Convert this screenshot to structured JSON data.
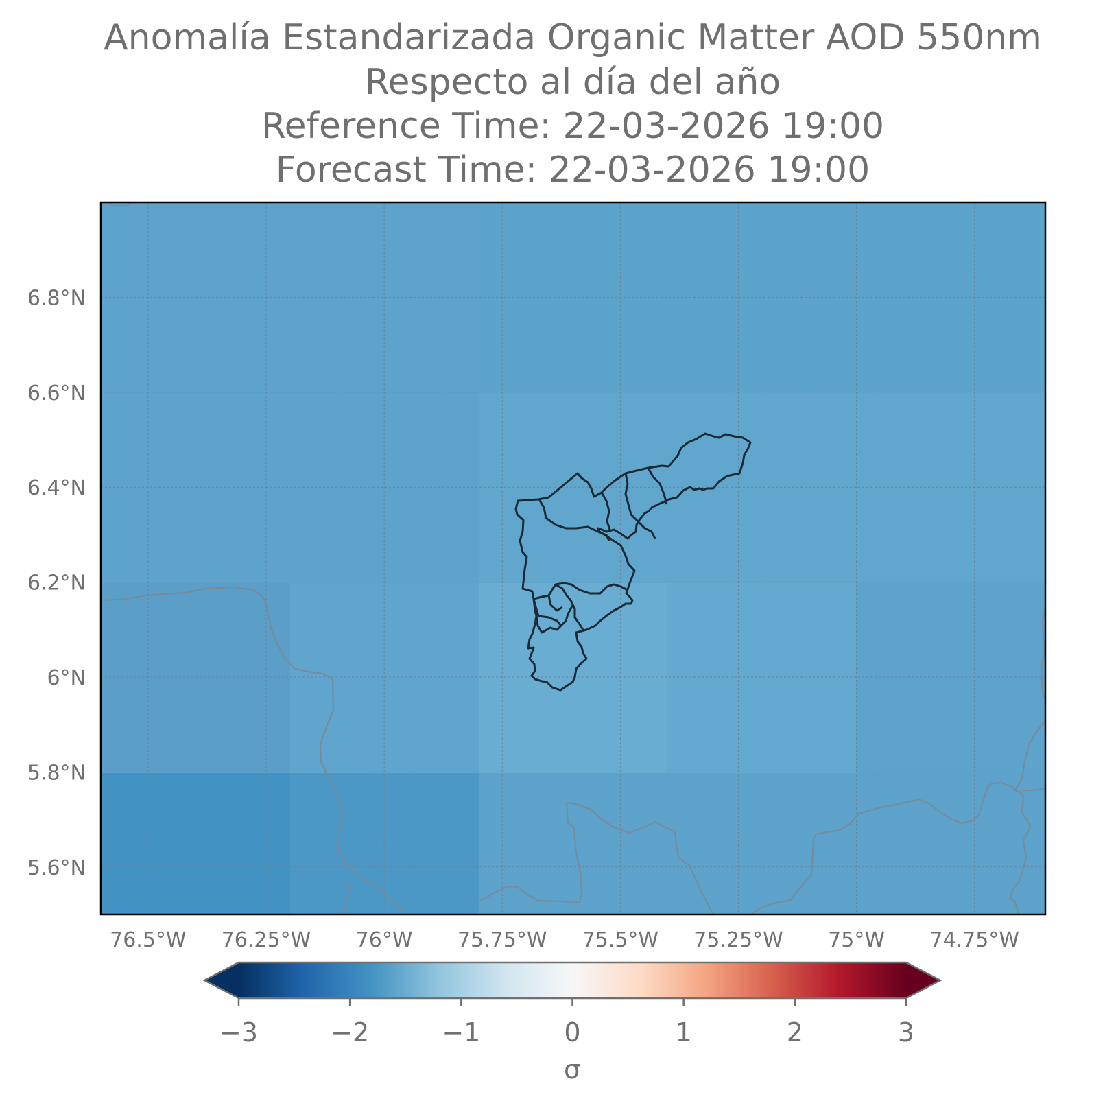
{
  "title": {
    "line1": "Anomalía Estandarizada Organic Matter AOD 550nm",
    "line2": "Respecto al día del año",
    "line3": "Reference Time: 22-03-2026 19:00",
    "line4": "Forecast Time: 22-03-2026 19:00"
  },
  "map": {
    "lon_range": [
      -76.6,
      -74.6
    ],
    "lat_range": [
      5.5,
      7.0
    ],
    "lat_ticks": [
      {
        "value": 6.8,
        "label": "6.8°N"
      },
      {
        "value": 6.6,
        "label": "6.6°N"
      },
      {
        "value": 6.4,
        "label": "6.4°N"
      },
      {
        "value": 6.2,
        "label": "6.2°N"
      },
      {
        "value": 6.0,
        "label": "6°N"
      },
      {
        "value": 5.8,
        "label": "5.8°N"
      },
      {
        "value": 5.6,
        "label": "5.6°N"
      }
    ],
    "lon_ticks": [
      {
        "value": -76.5,
        "label": "76.5°W"
      },
      {
        "value": -76.25,
        "label": "76.25°W"
      },
      {
        "value": -76.0,
        "label": "76°W"
      },
      {
        "value": -75.75,
        "label": "75.75°W"
      },
      {
        "value": -75.5,
        "label": "75.5°W"
      },
      {
        "value": -75.25,
        "label": "75.25°W"
      },
      {
        "value": -75.0,
        "label": "75°W"
      },
      {
        "value": -74.75,
        "label": "74.75°W"
      }
    ],
    "gridlines": true,
    "field_colors": {
      "level_-1.7": "#5da3cb",
      "level_-1.65": "#60a6cd",
      "level_-1.55": "#67acd1",
      "level_-1.9": "#4b98c6",
      "level_-2.05": "#4292c3"
    }
  },
  "colorbar": {
    "label": "σ",
    "ticks": [
      "−3",
      "−2",
      "−1",
      "0",
      "1",
      "2",
      "3"
    ],
    "range": [
      -3,
      3
    ],
    "colormap": "RdBu_r",
    "extend": "both"
  }
}
